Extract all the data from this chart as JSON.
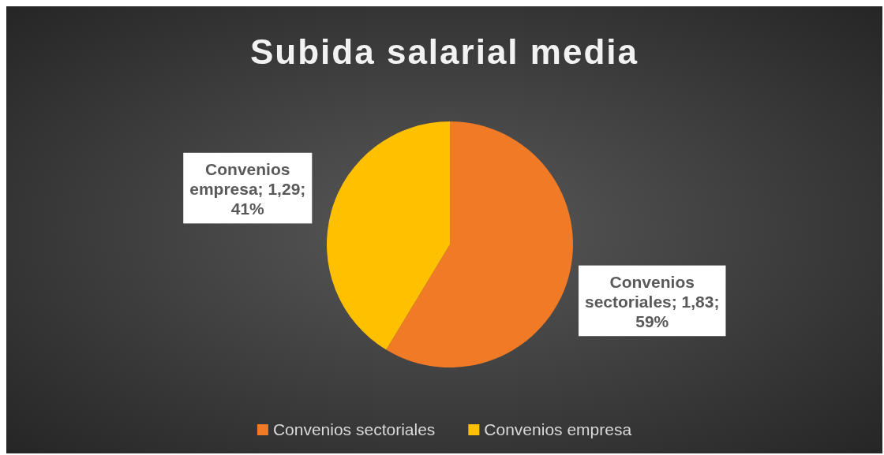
{
  "chart_data": {
    "type": "pie",
    "title": "Subida salarial media",
    "categories": [
      "Convenios sectoriales",
      "Convenios empresa"
    ],
    "values": [
      1.83,
      1.29
    ],
    "colors": [
      "#f07a26",
      "#ffc000"
    ],
    "value_labels": [
      "Convenios sectoriales; 1,83; 59%",
      "Convenios empresa; 1,29; 41%"
    ],
    "legend": "bottom"
  }
}
